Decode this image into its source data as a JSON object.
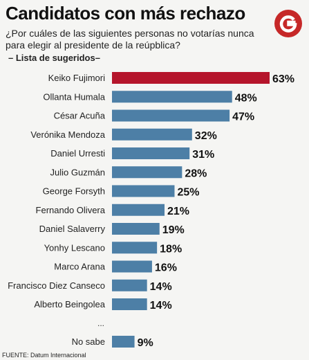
{
  "header": {
    "title": "Candidatos con más rechazo",
    "subtitle": "¿Por cuáles de las siguientes personas no votarías nunca para elegir al presidente de la reúpblica?",
    "note": "– Lista de sugeridos–",
    "logo_letter": "G"
  },
  "footer": {
    "source": "FUENTE: Datum Internacional",
    "ellipsis": "..."
  },
  "colors": {
    "highlight": "#b5152b",
    "bar": "#4d7fa6",
    "logo": "#c62828"
  },
  "chart_data": {
    "type": "bar",
    "orientation": "horizontal",
    "categories": [
      "Keiko Fujimori",
      "Ollanta Humala",
      "César Acuña",
      "Verónika Mendoza",
      "Daniel Urresti",
      "Julio Guzmán",
      "George Forsyth",
      "Fernando Olivera",
      "Daniel Salaverry",
      "Yonhy Lescano",
      "Marco Arana",
      "Francisco Diez Canseco",
      "Alberto Beingolea",
      "No sabe"
    ],
    "values": [
      63,
      48,
      47,
      32,
      31,
      28,
      25,
      21,
      19,
      18,
      16,
      14,
      14,
      9
    ],
    "value_labels": [
      "63%",
      "48%",
      "47%",
      "32%",
      "31%",
      "28%",
      "25%",
      "21%",
      "19%",
      "18%",
      "16%",
      "14%",
      "14%",
      "9%"
    ],
    "highlight_index": 0,
    "unit": "%",
    "xlim": [
      0,
      63
    ],
    "grid": false,
    "legend": "none"
  }
}
